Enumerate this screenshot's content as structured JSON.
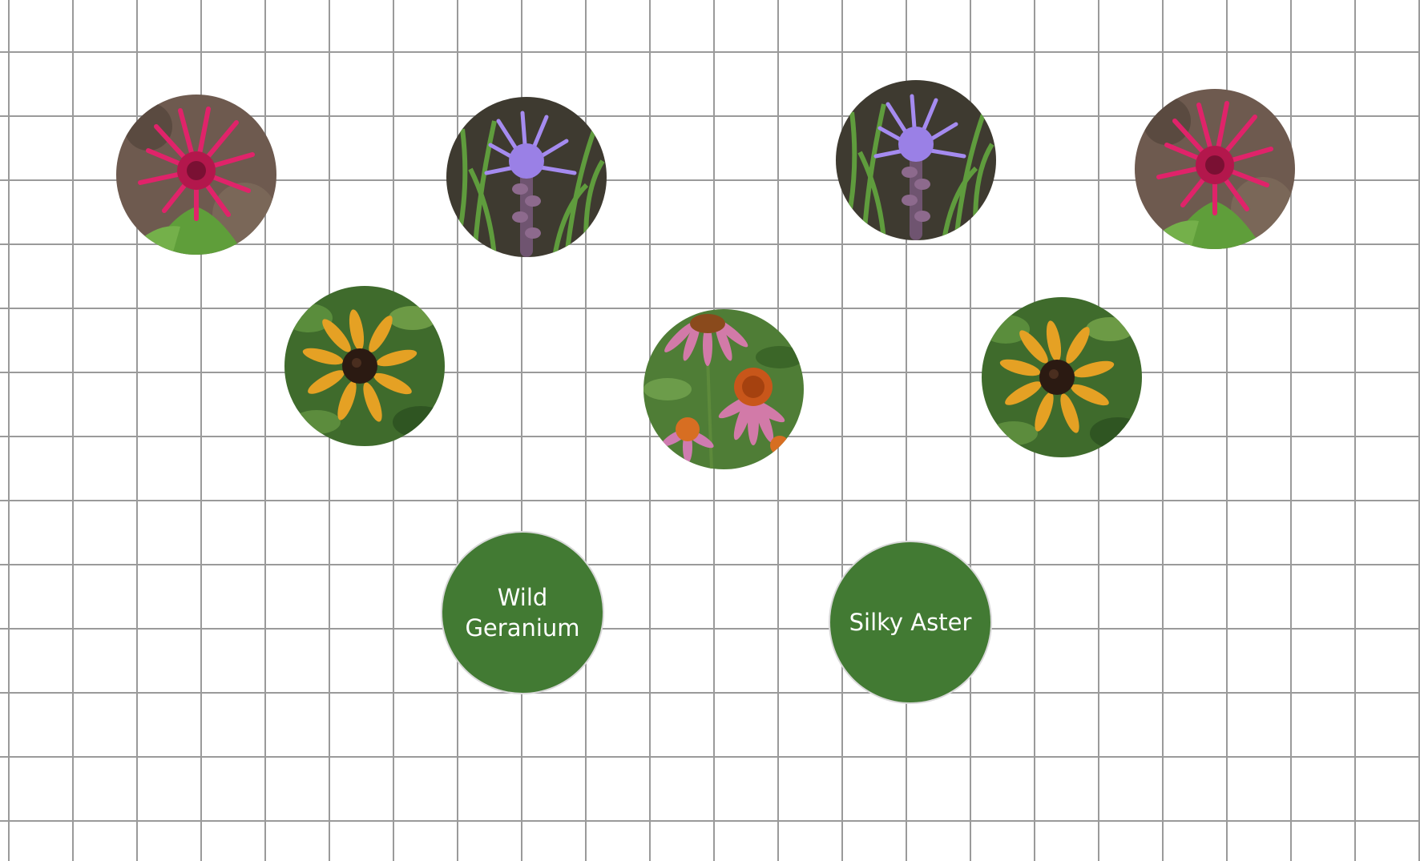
{
  "plants": [
    {
      "kind": "bee-balm"
    },
    {
      "kind": "blazing-star"
    },
    {
      "kind": "blazing-star"
    },
    {
      "kind": "bee-balm"
    },
    {
      "kind": "black-eyed-susan"
    },
    {
      "kind": "purple-coneflower"
    },
    {
      "kind": "black-eyed-susan"
    }
  ],
  "labels": [
    {
      "text": "Wild Geranium"
    },
    {
      "text": "Silky Aster"
    }
  ],
  "colors": {
    "grid_line": "#9a9a9a",
    "label_fill": "#427a33",
    "label_text": "#ffffff",
    "bee_balm": "#d8205a",
    "blazing_star": "#9c84ea",
    "black_eyed_susan": "#e5a124",
    "coneflower": "#d27aa8"
  }
}
